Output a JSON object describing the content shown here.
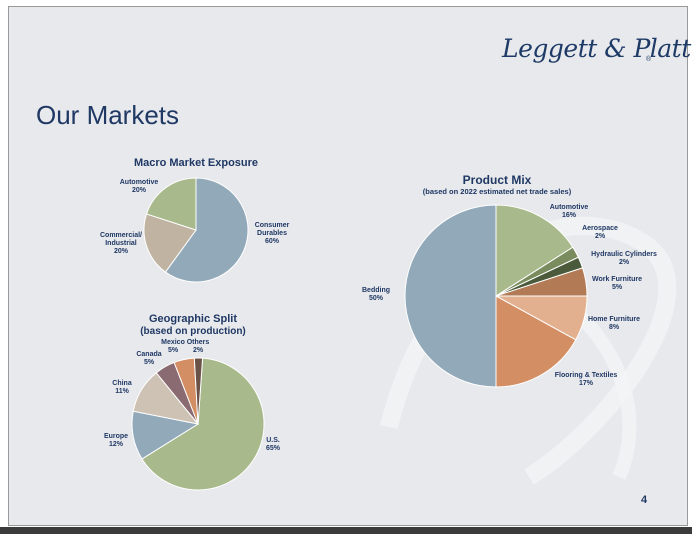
{
  "logo": "Leggett & Platt",
  "logo_mark": "®",
  "title": "Our Markets",
  "page_number": "4",
  "chart_data": [
    {
      "type": "pie",
      "title": "Macro Market Exposure",
      "subtitle": "",
      "slices": [
        {
          "label": "Consumer Durables",
          "lines": [
            "Consumer",
            "Durables",
            "60%"
          ],
          "value": 60,
          "color": "#92a9ba"
        },
        {
          "label": "Commercial/ Industrial",
          "lines": [
            "Commercial/",
            "Industrial",
            "20%"
          ],
          "value": 20,
          "color": "#c0b3a2"
        },
        {
          "label": "Automotive",
          "lines": [
            "Automotive",
            "20%"
          ],
          "value": 20,
          "color": "#a8b98c"
        }
      ]
    },
    {
      "type": "pie",
      "title": "Geographic Split",
      "subtitle": "(based on production)",
      "slices": [
        {
          "label": "U.S.",
          "lines": [
            "U.S.",
            "65%"
          ],
          "value": 65,
          "color": "#a8b98c"
        },
        {
          "label": "Europe",
          "lines": [
            "Europe",
            "12%"
          ],
          "value": 12,
          "color": "#92a9ba"
        },
        {
          "label": "China",
          "lines": [
            "China",
            "11%"
          ],
          "value": 11,
          "color": "#cdc2b4"
        },
        {
          "label": "Canada",
          "lines": [
            "Canada",
            "5%"
          ],
          "value": 5,
          "color": "#8a6b72"
        },
        {
          "label": "Mexico",
          "lines": [
            "Mexico",
            "5%"
          ],
          "value": 5,
          "color": "#d48e64"
        },
        {
          "label": "Others",
          "lines": [
            "Others",
            "2%"
          ],
          "value": 2,
          "color": "#6b5248"
        }
      ]
    },
    {
      "type": "pie",
      "title": "Product Mix",
      "subtitle": "(based on 2022 estimated net trade sales)",
      "slices": [
        {
          "label": "Automotive",
          "lines": [
            "Automotive",
            "16%"
          ],
          "value": 16,
          "color": "#a8b98c"
        },
        {
          "label": "Aerospace",
          "lines": [
            "Aerospace",
            "2%"
          ],
          "value": 2,
          "color": "#7a8c5e"
        },
        {
          "label": "Hydraulic Cylinders",
          "lines": [
            "Hydraulic Cylinders",
            "2%"
          ],
          "value": 2,
          "color": "#4a5a3a"
        },
        {
          "label": "Work Furniture",
          "lines": [
            "Work Furniture",
            "5%"
          ],
          "value": 5,
          "color": "#b27a55"
        },
        {
          "label": "Home Furniture",
          "lines": [
            "Home Furniture",
            "8%"
          ],
          "value": 8,
          "color": "#e3b08f"
        },
        {
          "label": "Flooring & Textiles",
          "lines": [
            "Flooring & Textiles",
            "17%"
          ],
          "value": 17,
          "color": "#d48e64"
        },
        {
          "label": "Bedding",
          "lines": [
            "Bedding",
            "50%"
          ],
          "value": 50,
          "color": "#92a9ba"
        }
      ]
    }
  ]
}
